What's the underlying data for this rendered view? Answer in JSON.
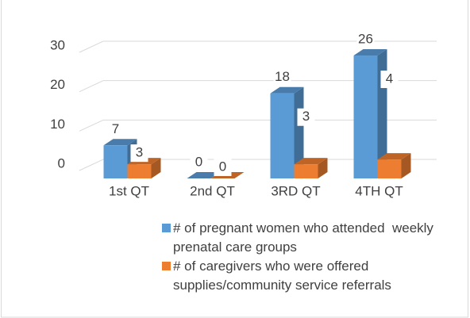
{
  "chart_data": {
    "type": "bar3d",
    "categories": [
      "1st QT",
      "2nd QT",
      "3RD QT",
      "4TH QT"
    ],
    "series": [
      {
        "name": "# of pregnant women who attended  weekly prenatal care groups",
        "color": "#5b9bd5",
        "values": [
          7,
          0,
          18,
          26
        ]
      },
      {
        "name": "# of caregivers who were offered supplies/community service referrals",
        "color": "#ed7d31",
        "values": [
          3,
          0,
          3,
          4
        ]
      }
    ],
    "ylim": [
      0,
      30
    ],
    "yticks": [
      0,
      10,
      20,
      30
    ],
    "grid": true,
    "legend": "bottom"
  }
}
